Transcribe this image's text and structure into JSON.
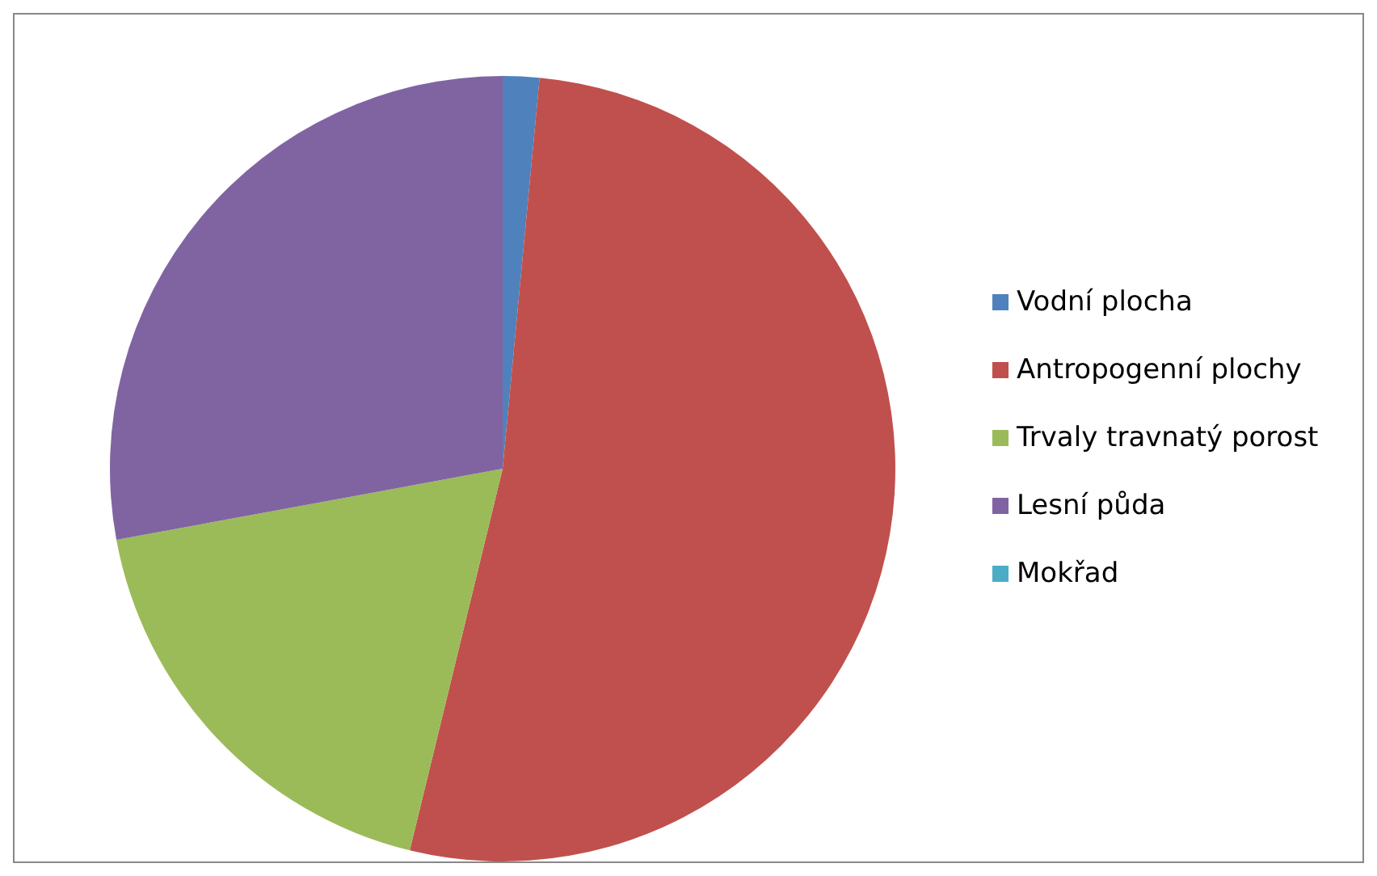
{
  "chart_data": {
    "type": "pie",
    "categories": [
      "Vodní plocha",
      "Antropogenní plochy",
      "Trvaly travnatý porost",
      "Lesní půda",
      "Mokřad"
    ],
    "values": [
      1.5,
      52.3,
      18.3,
      27.9,
      0
    ],
    "colors": [
      "#4f81bd",
      "#c0504d",
      "#9bbb59",
      "#8064a2",
      "#4bacc6"
    ],
    "legend": "right"
  }
}
